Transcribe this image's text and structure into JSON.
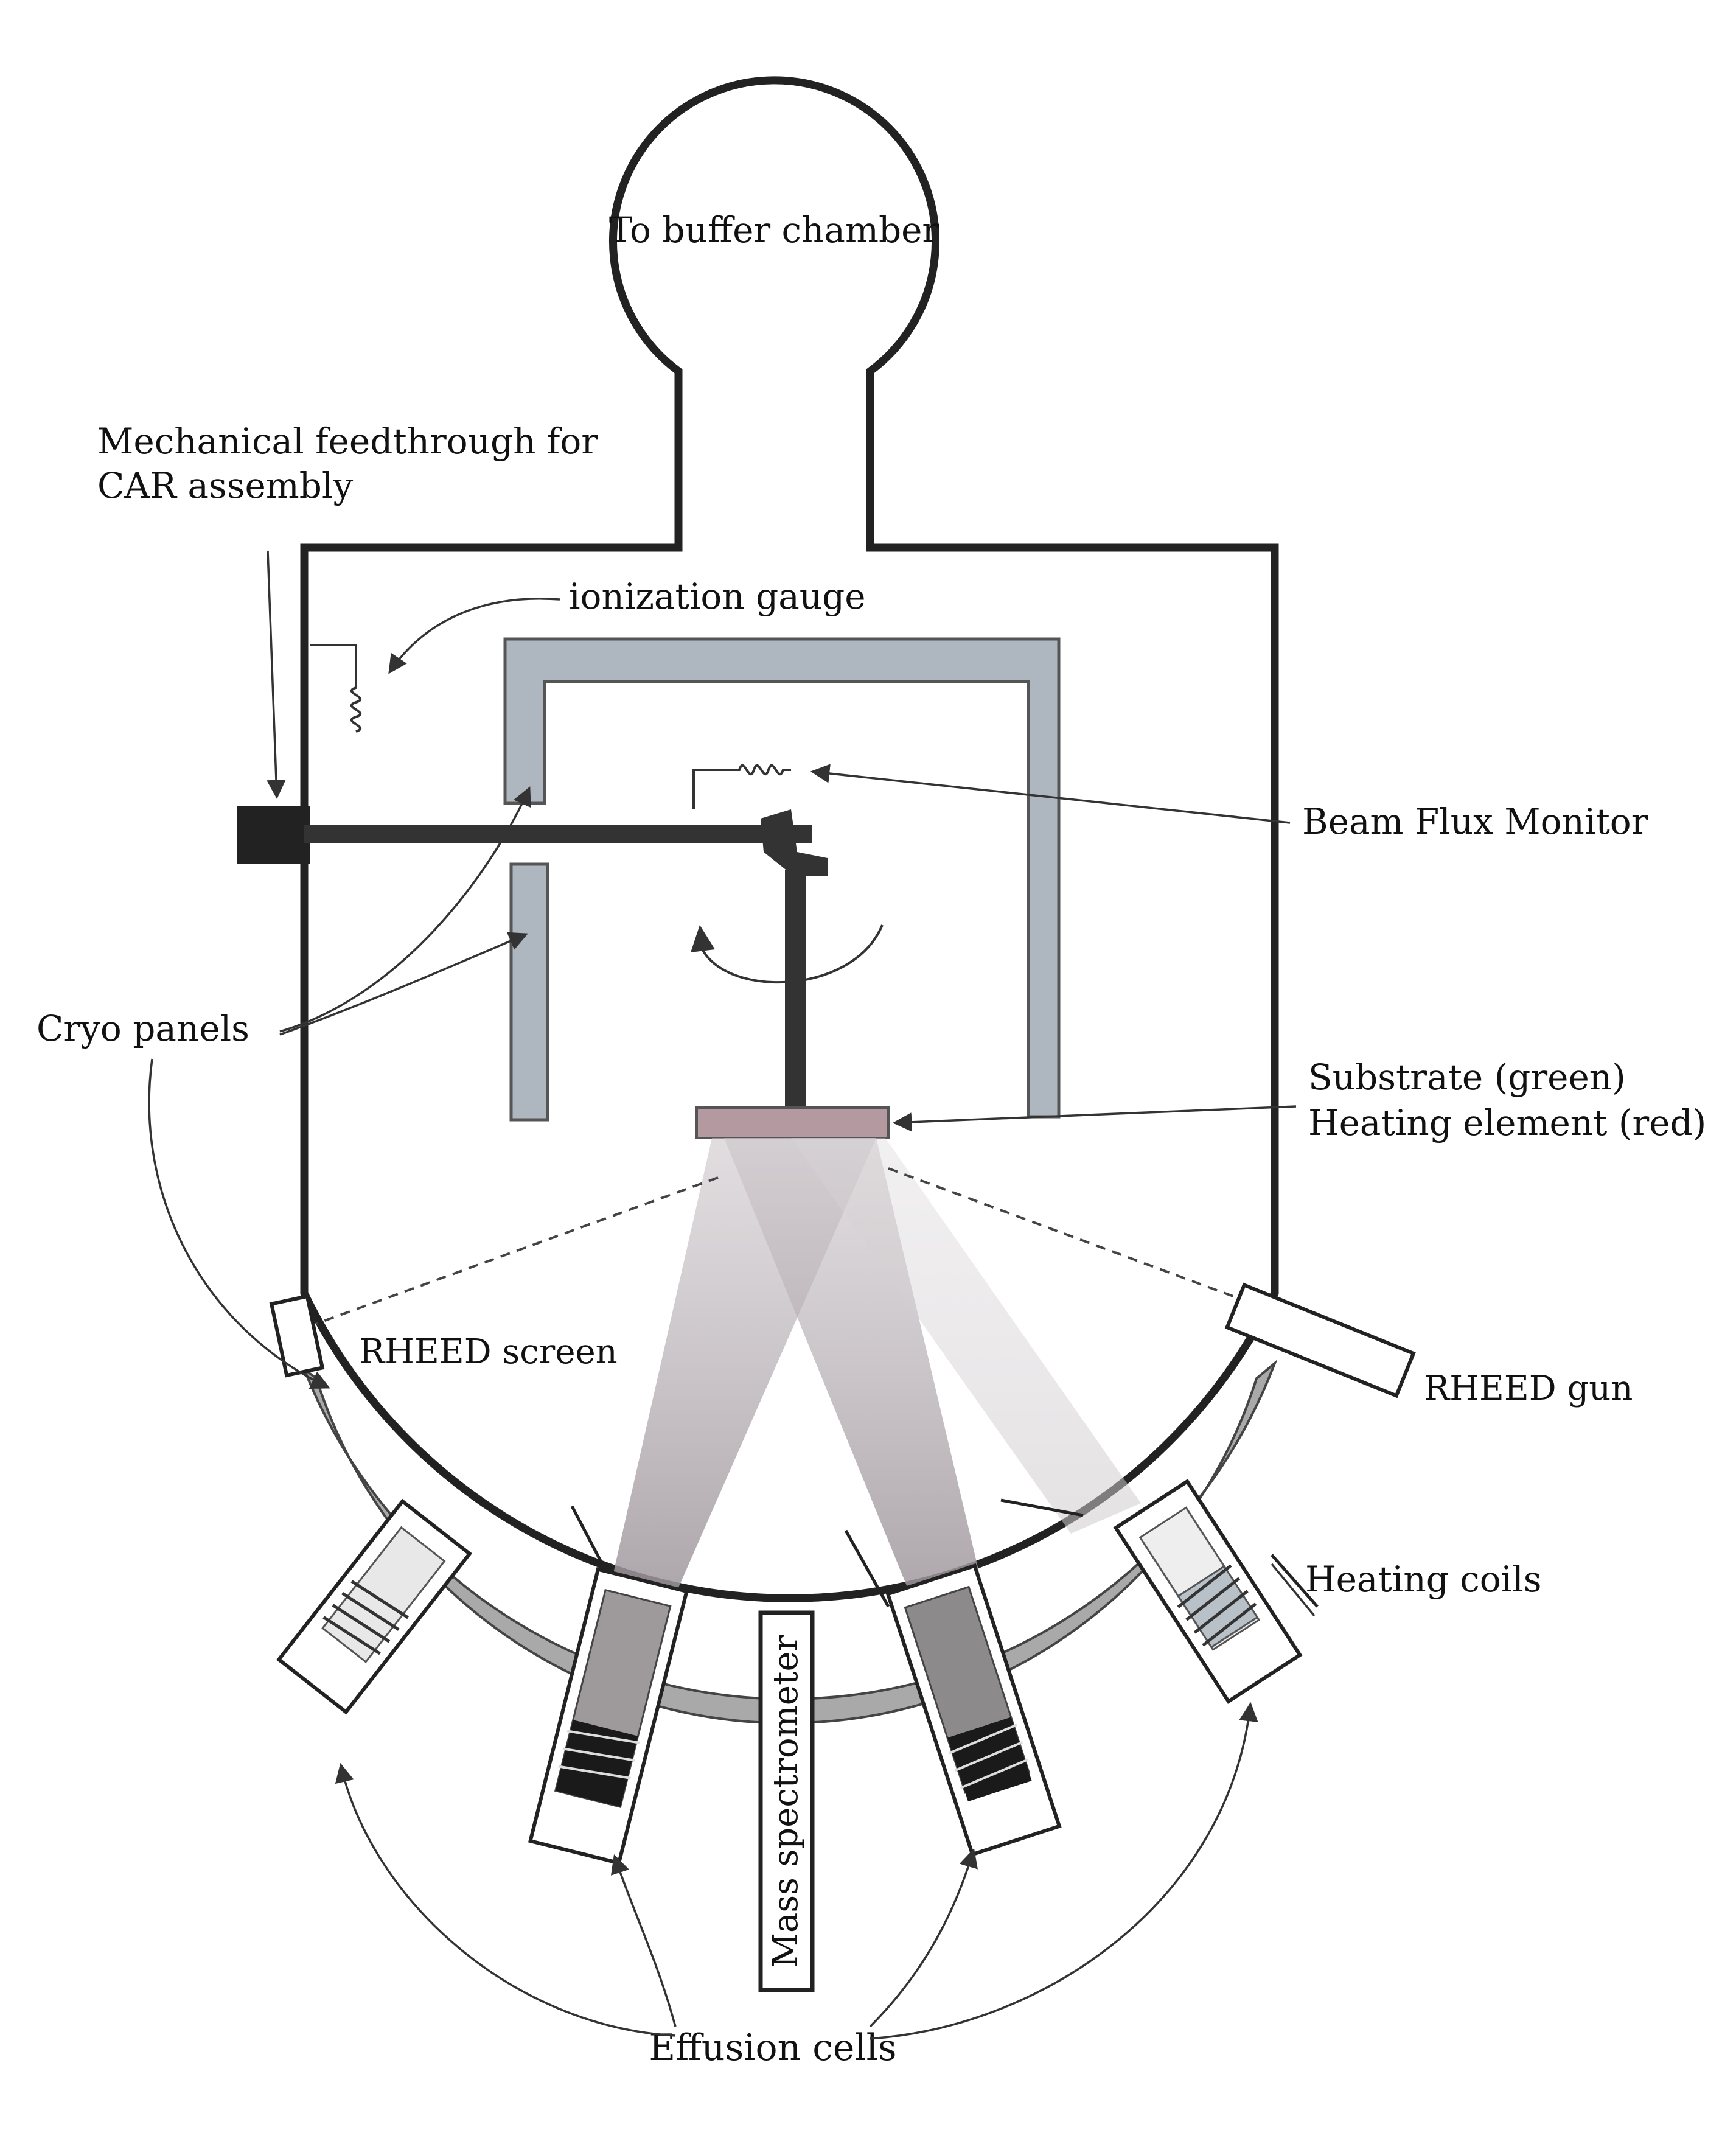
{
  "labels": {
    "buffer_chamber": "To buffer chamber",
    "mech_feedthrough_line1": "Mechanical feedthrough for",
    "mech_feedthrough_line2": "CAR assembly",
    "ionization_gauge": "ionization gauge",
    "beam_flux_monitor": "Beam Flux Monitor",
    "cryo_panels": "Cryo panels",
    "substrate": "Substrate (green)",
    "heating_element": "Heating element (red)",
    "rheed_screen": "RHEED screen",
    "rheed_gun": "RHEED gun",
    "heating_coils": "Heating coils",
    "mass_spectrometer": "Mass spectrometer",
    "effusion_cells": "Effusion cells"
  },
  "colors": {
    "line": "#222222",
    "cryo_panel": "#aeb6c0",
    "cryo_outline": "#555555",
    "shroud": "#a9a9a9",
    "substrate": "#b49aa0",
    "beam": "#b8b0b4",
    "background": "#ffffff"
  }
}
